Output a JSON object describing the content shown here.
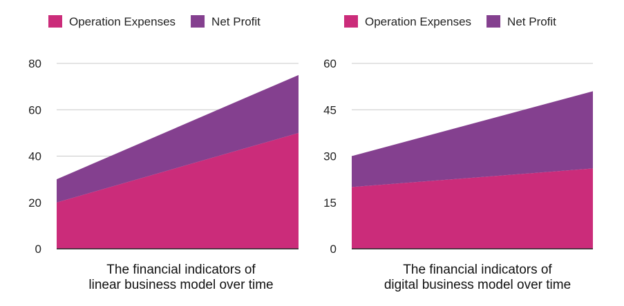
{
  "colors": {
    "operation_expenses": "#CB2C7A",
    "net_profit": "#84408F",
    "grid": "#C8C8C8",
    "axis": "#222222"
  },
  "chart_data": [
    {
      "type": "area",
      "stacked": true,
      "title_lines": [
        "The financial indicators of",
        "linear business model over time"
      ],
      "x": [
        0,
        1
      ],
      "series": [
        {
          "name": "Operation Expenses",
          "values": [
            20,
            50
          ],
          "color": "#CB2C7A"
        },
        {
          "name": "Net Profit",
          "values": [
            10,
            25
          ],
          "color": "#84408F"
        }
      ],
      "ylim": [
        0,
        80
      ],
      "yticks": [
        0,
        20,
        40,
        60,
        80
      ],
      "grid": true,
      "legend": "top-left"
    },
    {
      "type": "area",
      "stacked": true,
      "title_lines": [
        "The financial indicators of",
        "digital business model over time"
      ],
      "x": [
        0,
        1
      ],
      "series": [
        {
          "name": "Operation Expenses",
          "values": [
            20,
            26
          ],
          "color": "#CB2C7A"
        },
        {
          "name": "Net Profit",
          "values": [
            10,
            25
          ],
          "color": "#84408F"
        }
      ],
      "ylim": [
        0,
        60
      ],
      "yticks": [
        0,
        15,
        30,
        45,
        60
      ],
      "grid": true,
      "legend": "top-left"
    }
  ]
}
